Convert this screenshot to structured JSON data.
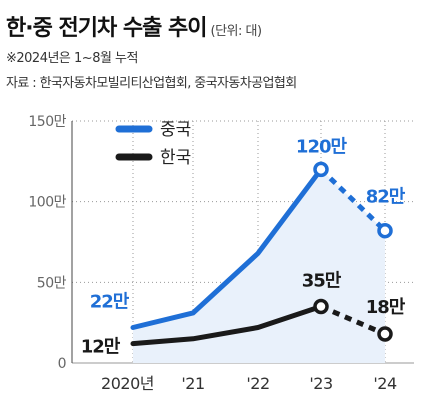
{
  "title": "한·중 전기차 수출 추이",
  "unit": "(단위: 대)",
  "note": "※2024년은 1~8월 누적",
  "source": "자료 : 한국자동차모빌리티산업협회, 중국자동차공업협회",
  "colors": {
    "china": "#1f6fd6",
    "korea": "#1a1a1a",
    "china_fill": "#e9f1fb",
    "grid": "#9a9a9a"
  },
  "chart_data": {
    "type": "line",
    "categories": [
      "2020년",
      "'21",
      "'22",
      "'23",
      "'24"
    ],
    "y_tick_labels": [
      "0",
      "50만",
      "100만",
      "150만"
    ],
    "y_tick_values": [
      0,
      50,
      100,
      150
    ],
    "ylim": [
      0,
      150
    ],
    "series": [
      {
        "name": "중국",
        "color": "#1f6fd6",
        "values": [
          22,
          31,
          68,
          120,
          82
        ],
        "labels": [
          "22만",
          "",
          "",
          "120만",
          "82만"
        ]
      },
      {
        "name": "한국",
        "color": "#1a1a1a",
        "values": [
          12,
          15,
          22,
          35,
          18
        ],
        "labels": [
          "12만",
          "",
          "",
          "35만",
          "18만"
        ]
      }
    ],
    "marked_points": [
      3,
      4
    ],
    "dashed_last_segment": true,
    "legend": "top-left"
  }
}
